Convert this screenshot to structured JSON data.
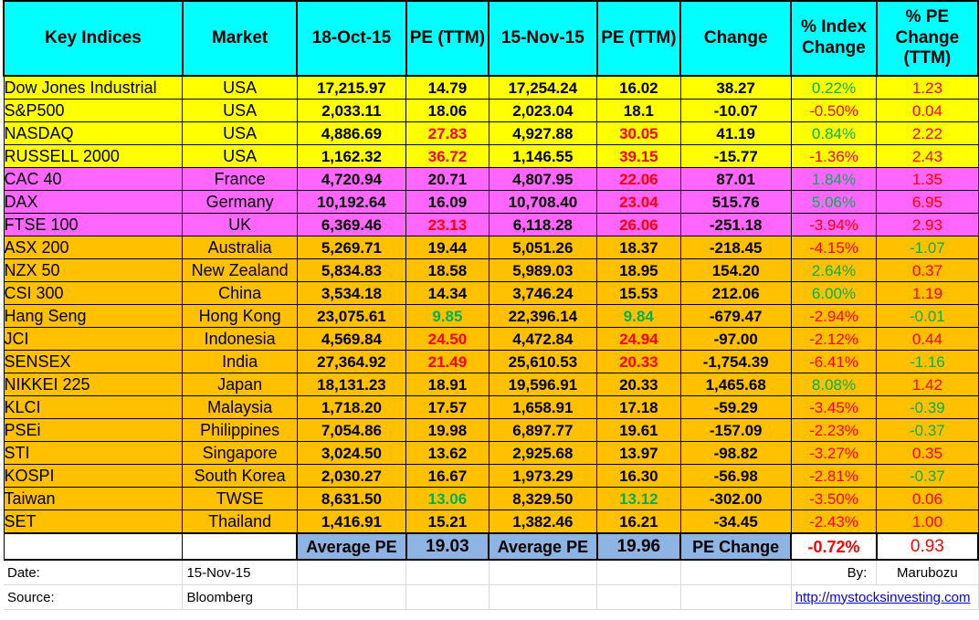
{
  "headers": {
    "key_indices": "Key Indices",
    "market": "Market",
    "date1": "18-Oct-15",
    "pe1": "PE (TTM)",
    "date2": "15-Nov-15",
    "pe2": "PE (TTM)",
    "change": "Change",
    "pct_index": "% Index Change",
    "pct_pe": "% PE Change (TTM)"
  },
  "rows": [
    {
      "index": "Dow Jones Industrial",
      "market": "USA",
      "v1": "17,215.97",
      "pe1": "14.79",
      "v2": "17,254.24",
      "pe2": "16.02",
      "change": "38.27",
      "pct": "0.22%",
      "pe_chg": "1.23",
      "group": "yellow",
      "pe1_color": "black",
      "pe2_color": "black",
      "pct_color": "green",
      "pe_chg_color": "red"
    },
    {
      "index": "S&P500",
      "market": "USA",
      "v1": "2,033.11",
      "pe1": "18.06",
      "v2": "2,023.04",
      "pe2": "18.1",
      "change": "-10.07",
      "pct": "-0.50%",
      "pe_chg": "0.04",
      "group": "yellow",
      "pe1_color": "black",
      "pe2_color": "black",
      "pct_color": "red",
      "pe_chg_color": "red"
    },
    {
      "index": "NASDAQ",
      "market": "USA",
      "v1": "4,886.69",
      "pe1": "27.83",
      "v2": "4,927.88",
      "pe2": "30.05",
      "change": "41.19",
      "pct": "0.84%",
      "pe_chg": "2.22",
      "group": "yellow",
      "pe1_color": "red",
      "pe2_color": "red",
      "pct_color": "green",
      "pe_chg_color": "red"
    },
    {
      "index": "RUSSELL 2000",
      "market": "USA",
      "v1": "1,162.32",
      "pe1": "36.72",
      "v2": "1,146.55",
      "pe2": "39.15",
      "change": "-15.77",
      "pct": "-1.36%",
      "pe_chg": "2.43",
      "group": "yellow",
      "pe1_color": "red",
      "pe2_color": "red",
      "pct_color": "red",
      "pe_chg_color": "red"
    },
    {
      "index": "CAC 40",
      "market": "France",
      "v1": "4,720.94",
      "pe1": "20.71",
      "v2": "4,807.95",
      "pe2": "22.06",
      "change": "87.01",
      "pct": "1.84%",
      "pe_chg": "1.35",
      "group": "magenta",
      "pe1_color": "black",
      "pe2_color": "red",
      "pct_color": "green",
      "pe_chg_color": "red"
    },
    {
      "index": "DAX",
      "market": "Germany",
      "v1": "10,192.64",
      "pe1": "16.09",
      "v2": "10,708.40",
      "pe2": "23.04",
      "change": "515.76",
      "pct": "5.06%",
      "pe_chg": "6.95",
      "group": "magenta",
      "pe1_color": "black",
      "pe2_color": "red",
      "pct_color": "green",
      "pe_chg_color": "red"
    },
    {
      "index": "FTSE 100",
      "market": "UK",
      "v1": "6,369.46",
      "pe1": "23.13",
      "v2": "6,118.28",
      "pe2": "26.06",
      "change": "-251.18",
      "pct": "-3.94%",
      "pe_chg": "2.93",
      "group": "magenta",
      "pe1_color": "red",
      "pe2_color": "red",
      "pct_color": "red",
      "pe_chg_color": "red"
    },
    {
      "index": "ASX 200",
      "market": "Australia",
      "v1": "5,269.71",
      "pe1": "19.44",
      "v2": "5,051.26",
      "pe2": "18.37",
      "change": "-218.45",
      "pct": "-4.15%",
      "pe_chg": "-1.07",
      "group": "orange",
      "pe1_color": "black",
      "pe2_color": "black",
      "pct_color": "red",
      "pe_chg_color": "green"
    },
    {
      "index": "NZX 50",
      "market": "New Zealand",
      "v1": "5,834.83",
      "pe1": "18.58",
      "v2": "5,989.03",
      "pe2": "18.95",
      "change": "154.20",
      "pct": "2.64%",
      "pe_chg": "0.37",
      "group": "orange",
      "pe1_color": "black",
      "pe2_color": "black",
      "pct_color": "green",
      "pe_chg_color": "red"
    },
    {
      "index": "CSI 300",
      "market": "China",
      "v1": "3,534.18",
      "pe1": "14.34",
      "v2": "3,746.24",
      "pe2": "15.53",
      "change": "212.06",
      "pct": "6.00%",
      "pe_chg": "1.19",
      "group": "orange",
      "pe1_color": "black",
      "pe2_color": "black",
      "pct_color": "green",
      "pe_chg_color": "red"
    },
    {
      "index": "Hang Seng",
      "market": "Hong Kong",
      "v1": "23,075.61",
      "pe1": "9.85",
      "v2": "22,396.14",
      "pe2": "9.84",
      "change": "-679.47",
      "pct": "-2.94%",
      "pe_chg": "-0.01",
      "group": "orange",
      "pe1_color": "green",
      "pe2_color": "green",
      "pct_color": "red",
      "pe_chg_color": "green"
    },
    {
      "index": "JCI",
      "market": "Indonesia",
      "v1": "4,569.84",
      "pe1": "24.50",
      "v2": "4,472.84",
      "pe2": "24.94",
      "change": "-97.00",
      "pct": "-2.12%",
      "pe_chg": "0.44",
      "group": "orange",
      "pe1_color": "red",
      "pe2_color": "red",
      "pct_color": "red",
      "pe_chg_color": "red"
    },
    {
      "index": "SENSEX",
      "market": "India",
      "v1": "27,364.92",
      "pe1": "21.49",
      "v2": "25,610.53",
      "pe2": "20.33",
      "change": "-1,754.39",
      "pct": "-6.41%",
      "pe_chg": "-1.16",
      "group": "orange",
      "pe1_color": "red",
      "pe2_color": "red",
      "pct_color": "red",
      "pe_chg_color": "green"
    },
    {
      "index": "NIKKEI 225",
      "market": "Japan",
      "v1": "18,131.23",
      "pe1": "18.91",
      "v2": "19,596.91",
      "pe2": "20.33",
      "change": "1,465.68",
      "pct": "8.08%",
      "pe_chg": "1.42",
      "group": "orange",
      "pe1_color": "black",
      "pe2_color": "black",
      "pct_color": "green",
      "pe_chg_color": "red"
    },
    {
      "index": "KLCI",
      "market": "Malaysia",
      "v1": "1,718.20",
      "pe1": "17.57",
      "v2": "1,658.91",
      "pe2": "17.18",
      "change": "-59.29",
      "pct": "-3.45%",
      "pe_chg": "-0.39",
      "group": "orange",
      "pe1_color": "black",
      "pe2_color": "black",
      "pct_color": "red",
      "pe_chg_color": "green"
    },
    {
      "index": "PSEi",
      "market": "Philippines",
      "v1": "7,054.86",
      "pe1": "19.98",
      "v2": "6,897.77",
      "pe2": "19.61",
      "change": "-157.09",
      "pct": "-2.23%",
      "pe_chg": "-0.37",
      "group": "orange",
      "pe1_color": "black",
      "pe2_color": "black",
      "pct_color": "red",
      "pe_chg_color": "green"
    },
    {
      "index": "STI",
      "market": "Singapore",
      "v1": "3,024.50",
      "pe1": "13.62",
      "v2": "2,925.68",
      "pe2": "13.97",
      "change": "-98.82",
      "pct": "-3.27%",
      "pe_chg": "0.35",
      "group": "orange",
      "pe1_color": "black",
      "pe2_color": "black",
      "pct_color": "red",
      "pe_chg_color": "red"
    },
    {
      "index": "KOSPI",
      "market": "South Korea",
      "v1": "2,030.27",
      "pe1": "16.67",
      "v2": "1,973.29",
      "pe2": "16.30",
      "change": "-56.98",
      "pct": "-2.81%",
      "pe_chg": "-0.37",
      "group": "orange",
      "pe1_color": "black",
      "pe2_color": "black",
      "pct_color": "red",
      "pe_chg_color": "green"
    },
    {
      "index": "Taiwan",
      "market": "TWSE",
      "v1": "8,631.50",
      "pe1": "13.06",
      "v2": "8,329.50",
      "pe2": "13.12",
      "change": "-302.00",
      "pct": "-3.50%",
      "pe_chg": "0.06",
      "group": "orange",
      "pe1_color": "green",
      "pe2_color": "green",
      "pct_color": "red",
      "pe_chg_color": "red"
    },
    {
      "index": "SET",
      "market": "Thailand",
      "v1": "1,416.91",
      "pe1": "15.21",
      "v2": "1,382.46",
      "pe2": "16.21",
      "change": "-34.45",
      "pct": "-2.43%",
      "pe_chg": "1.00",
      "group": "orange",
      "pe1_color": "black",
      "pe2_color": "black",
      "pct_color": "red",
      "pe_chg_color": "red"
    }
  ],
  "average": {
    "label1": "Average PE",
    "pe1": "19.03",
    "label2": "Average PE",
    "pe2": "19.96",
    "change_label": "PE Change",
    "pct": "-0.72%",
    "pe_chg": "0.93"
  },
  "footer": {
    "date_label": "Date:",
    "date_value": "15-Nov-15",
    "by_label": "By:",
    "by_value": "Marubozu",
    "source_label": "Source:",
    "source_value": "Bloomberg",
    "link_text": "http://mystocksinvesting.com"
  },
  "colors": {
    "header_bg": "#00ffff",
    "yellow": "#ffff00",
    "magenta": "#ff66ff",
    "orange": "#ffc000",
    "avg_blue": "#8db4e2",
    "red": "#ff0000",
    "green": "#00b050"
  }
}
